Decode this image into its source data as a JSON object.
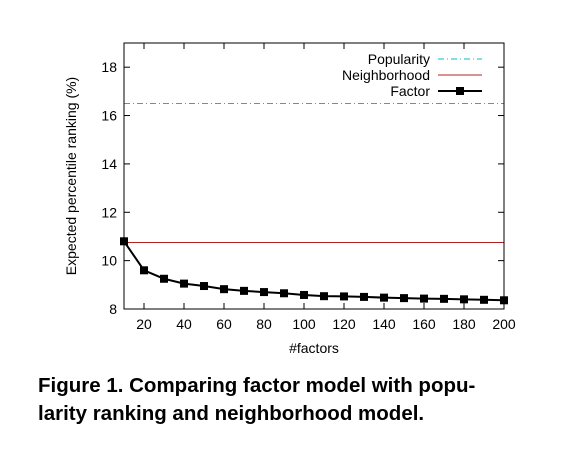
{
  "chart_data": {
    "type": "line",
    "xlabel": "#factors",
    "ylabel": "Expected percentile ranking (%)",
    "xlim": [
      10,
      200
    ],
    "ylim": [
      8,
      19
    ],
    "x_ticks": [
      20,
      40,
      60,
      80,
      100,
      120,
      140,
      160,
      180,
      200
    ],
    "y_ticks": [
      8,
      10,
      12,
      14,
      16,
      18
    ],
    "grid": false,
    "legend_position": "top-right",
    "series": [
      {
        "name": "Popularity",
        "style": "dash-dot",
        "color": "#00bcd4",
        "x": [
          10,
          200
        ],
        "y": [
          16.5,
          16.5
        ]
      },
      {
        "name": "Neighborhood",
        "style": "solid",
        "color": "#b22222",
        "x": [
          10,
          200
        ],
        "y": [
          10.75,
          10.75
        ]
      },
      {
        "name": "Factor",
        "style": "line-square-markers",
        "color": "#000000",
        "x": [
          10,
          20,
          30,
          40,
          50,
          60,
          70,
          80,
          90,
          100,
          110,
          120,
          130,
          140,
          150,
          160,
          170,
          180,
          190,
          200
        ],
        "y": [
          10.8,
          9.6,
          9.25,
          9.05,
          8.95,
          8.82,
          8.75,
          8.7,
          8.65,
          8.58,
          8.53,
          8.52,
          8.5,
          8.47,
          8.45,
          8.43,
          8.42,
          8.4,
          8.38,
          8.36
        ]
      }
    ]
  },
  "caption": {
    "line1": "Figure 1. Comparing factor model with popu-",
    "line2": "larity ranking and neighborhood model."
  }
}
